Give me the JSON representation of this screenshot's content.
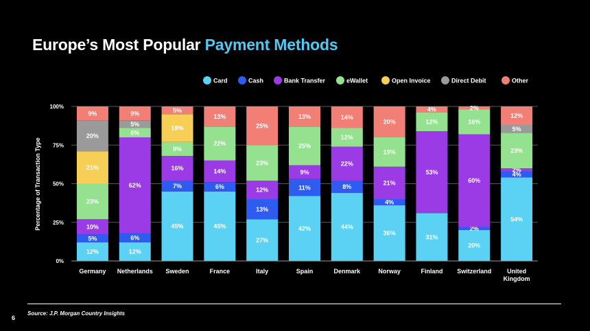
{
  "title": {
    "part1": "Europe’s Most Popular",
    "part2": "Payment Methods"
  },
  "source": "Source: J.P. Morgan Country Insights",
  "page_number": "6",
  "colors": {
    "Card": "#5bd2f4",
    "Cash": "#2f5cf0",
    "Bank Transfer": "#9a3be6",
    "eWallet": "#94e290",
    "Open Invoice": "#f7cf57",
    "Direct Debit": "#9a9a9a",
    "Other": "#f27f75"
  },
  "chart_data": {
    "type": "bar",
    "stacked": true,
    "categories": [
      "Germany",
      "Netherlands",
      "Sweden",
      "France",
      "Italy",
      "Spain",
      "Denmark",
      "Norway",
      "Finland",
      "Switzerland",
      "United Kingdom"
    ],
    "category_labels": [
      [
        "Germany"
      ],
      [
        "Netherlands"
      ],
      [
        "Sweden"
      ],
      [
        "France"
      ],
      [
        "Italy"
      ],
      [
        "Spain"
      ],
      [
        "Denmark"
      ],
      [
        "Norway"
      ],
      [
        "Finland"
      ],
      [
        "Switzerland"
      ],
      [
        "United",
        "Kingdom"
      ]
    ],
    "series": [
      {
        "name": "Card",
        "values": [
          12,
          12,
          45,
          45,
          27,
          42,
          44,
          36,
          31,
          20,
          54
        ]
      },
      {
        "name": "Cash",
        "values": [
          5,
          6,
          7,
          6,
          13,
          11,
          8,
          4,
          0,
          2,
          4
        ]
      },
      {
        "name": "Bank Transfer",
        "values": [
          10,
          62,
          16,
          14,
          12,
          9,
          22,
          21,
          53,
          60,
          2
        ]
      },
      {
        "name": "eWallet",
        "values": [
          23,
          6,
          9,
          22,
          23,
          25,
          12,
          19,
          12,
          16,
          23
        ]
      },
      {
        "name": "Open Invoice",
        "values": [
          21,
          0,
          18,
          0,
          0,
          0,
          0,
          0,
          0,
          0,
          0
        ]
      },
      {
        "name": "Direct Debit",
        "values": [
          20,
          5,
          0,
          0,
          0,
          0,
          0,
          0,
          0,
          0,
          5
        ]
      },
      {
        "name": "Other",
        "values": [
          9,
          9,
          5,
          13,
          25,
          13,
          14,
          20,
          4,
          2,
          12
        ]
      }
    ],
    "ylabel": "Percentage of Transaction Type",
    "xlabel": "",
    "ylim": [
      0,
      100
    ],
    "yticks": [
      "0%",
      "25%",
      "50%",
      "75%",
      "100%"
    ],
    "grid": true,
    "legend_position": "top-right"
  }
}
